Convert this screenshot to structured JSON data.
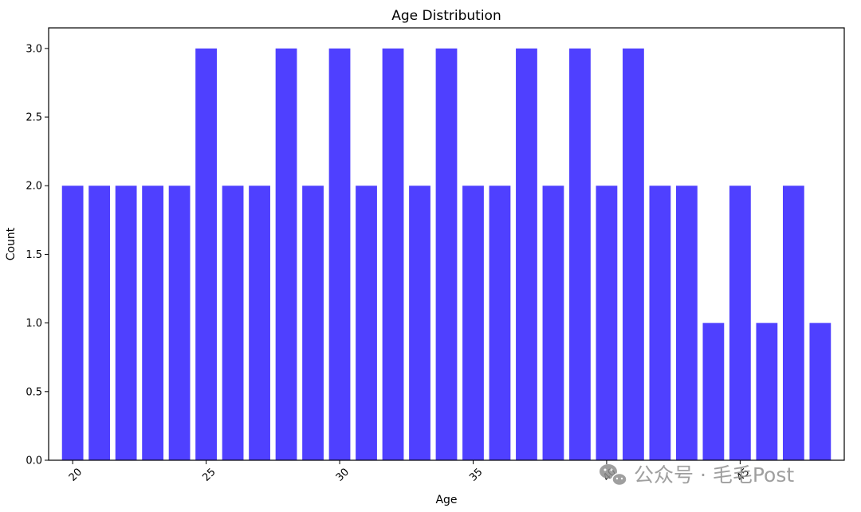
{
  "chart_data": {
    "type": "bar",
    "title": "Age Distribution",
    "xlabel": "Age",
    "ylabel": "Count",
    "x": [
      20,
      21,
      22,
      23,
      24,
      25,
      26,
      27,
      28,
      29,
      30,
      31,
      32,
      33,
      34,
      35,
      36,
      37,
      38,
      39,
      40,
      41,
      42,
      43,
      44,
      45,
      46,
      47,
      48
    ],
    "values": [
      2,
      2,
      2,
      2,
      2,
      3,
      2,
      2,
      3,
      2,
      3,
      2,
      3,
      2,
      3,
      2,
      2,
      3,
      2,
      3,
      2,
      3,
      2,
      2,
      1,
      2,
      1,
      2,
      1
    ],
    "xlim": [
      19.1,
      48.9
    ],
    "ylim": [
      0,
      3.15
    ],
    "xticks": [
      20,
      25,
      30,
      35,
      40,
      45
    ],
    "xtick_labels": [
      "20",
      "25",
      "30",
      "35",
      "40",
      "45"
    ],
    "yticks": [
      0,
      0.5,
      1,
      1.5,
      2,
      2.5,
      3
    ],
    "ytick_labels": [
      "0.0",
      "0.5",
      "1.0",
      "1.5",
      "2.0",
      "2.5",
      "3.0"
    ],
    "bar_color": "#4f40ff",
    "grid": false,
    "legend": "none"
  },
  "watermark": {
    "text": "公众号 · 毛毛Post",
    "icon": "wechat-icon"
  }
}
